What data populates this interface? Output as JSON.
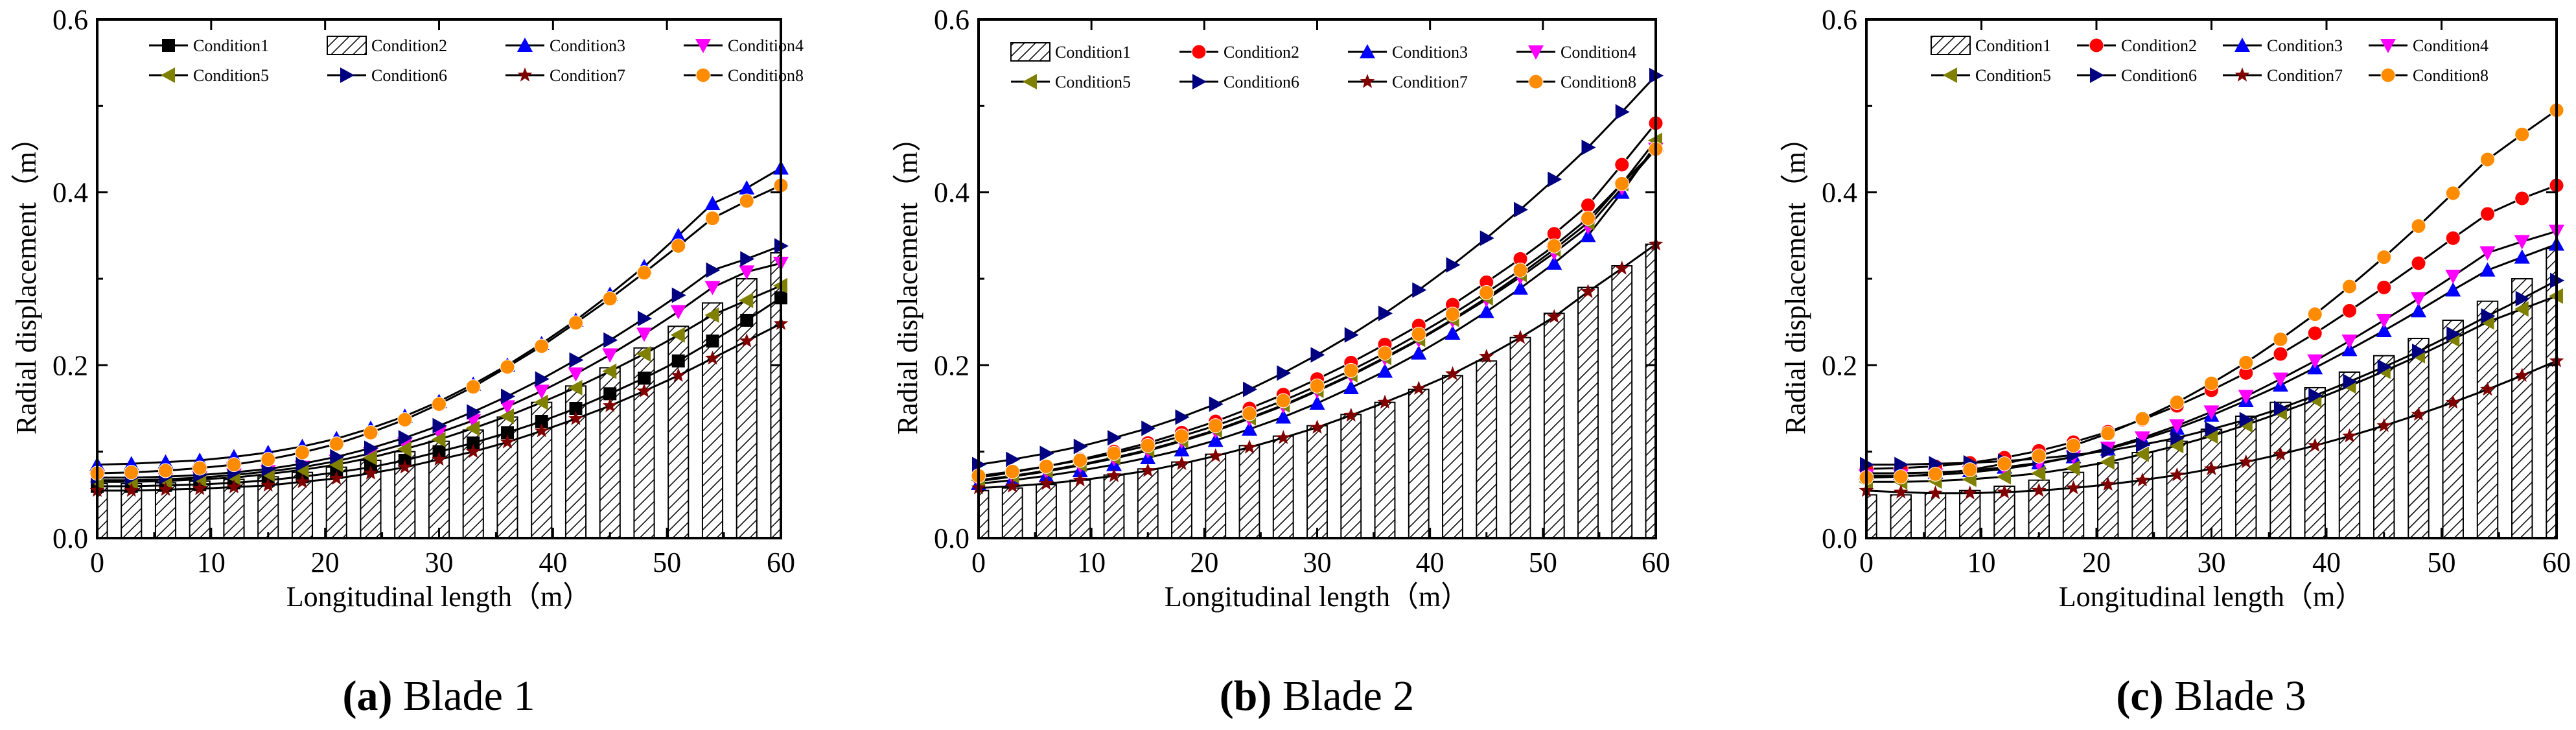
{
  "figure": {
    "colors": {
      "Condition1": "#000000",
      "Condition2": "#ff0000",
      "Condition3": "#0000ff",
      "Condition4": "#ff00ff",
      "Condition5": "#808000",
      "Condition6": "#000080",
      "Condition7": "#800000",
      "Condition8": "#ff8c00"
    }
  },
  "chart_data": [
    {
      "type": "line",
      "caption_label": "(a)",
      "caption_text": " Blade 1",
      "xlabel": "Longitudinal length（m）",
      "ylabel": "Radial displacement（m）",
      "xlim": [
        0,
        60
      ],
      "ylim": [
        0,
        0.6
      ],
      "xticks": [
        "0",
        "10",
        "20",
        "30",
        "40",
        "50",
        "60"
      ],
      "yticks": [
        "0.0",
        "0.2",
        "0.4",
        "0.6"
      ],
      "x": [
        0,
        3,
        6,
        9,
        12,
        15,
        18,
        21,
        24,
        27,
        30,
        33,
        36,
        39,
        42,
        45,
        48,
        51,
        54,
        57,
        60
      ],
      "bar_series": "Condition2",
      "legend": [
        "Condition1",
        "Condition2",
        "Condition3",
        "Condition4",
        "Condition5",
        "Condition6",
        "Condition7",
        "Condition8"
      ],
      "series": [
        {
          "name": "Condition1",
          "marker": "square",
          "values": [
            0.06,
            0.06,
            0.061,
            0.062,
            0.064,
            0.067,
            0.071,
            0.076,
            0.082,
            0.09,
            0.1,
            0.11,
            0.122,
            0.135,
            0.15,
            0.167,
            0.185,
            0.205,
            0.228,
            0.252,
            0.278
          ]
        },
        {
          "name": "Condition2",
          "marker": "bar",
          "values": [
            0.063,
            0.063,
            0.064,
            0.066,
            0.068,
            0.071,
            0.076,
            0.082,
            0.09,
            0.1,
            0.112,
            0.125,
            0.14,
            0.157,
            0.176,
            0.197,
            0.22,
            0.245,
            0.272,
            0.3,
            0.33
          ]
        },
        {
          "name": "Condition3",
          "marker": "triangle-up",
          "values": [
            0.085,
            0.086,
            0.088,
            0.09,
            0.094,
            0.099,
            0.106,
            0.115,
            0.127,
            0.141,
            0.158,
            0.178,
            0.2,
            0.225,
            0.252,
            0.282,
            0.314,
            0.35,
            0.387,
            0.405,
            0.428
          ]
        },
        {
          "name": "Condition4",
          "marker": "triangle-down",
          "values": [
            0.067,
            0.067,
            0.068,
            0.07,
            0.073,
            0.077,
            0.082,
            0.089,
            0.098,
            0.109,
            0.122,
            0.136,
            0.152,
            0.17,
            0.19,
            0.212,
            0.236,
            0.262,
            0.29,
            0.308,
            0.318
          ]
        },
        {
          "name": "Condition5",
          "marker": "triangle-left",
          "values": [
            0.065,
            0.065,
            0.066,
            0.068,
            0.07,
            0.074,
            0.079,
            0.085,
            0.093,
            0.103,
            0.114,
            0.127,
            0.141,
            0.157,
            0.174,
            0.193,
            0.213,
            0.235,
            0.258,
            0.275,
            0.292
          ]
        },
        {
          "name": "Condition6",
          "marker": "triangle-right",
          "values": [
            0.07,
            0.07,
            0.071,
            0.073,
            0.076,
            0.08,
            0.086,
            0.094,
            0.104,
            0.116,
            0.13,
            0.146,
            0.164,
            0.184,
            0.206,
            0.229,
            0.254,
            0.281,
            0.31,
            0.323,
            0.338
          ]
        },
        {
          "name": "Condition7",
          "marker": "star",
          "values": [
            0.055,
            0.055,
            0.056,
            0.057,
            0.059,
            0.061,
            0.065,
            0.069,
            0.075,
            0.082,
            0.091,
            0.1,
            0.111,
            0.124,
            0.138,
            0.153,
            0.17,
            0.188,
            0.208,
            0.228,
            0.248
          ]
        },
        {
          "name": "Condition8",
          "marker": "circle",
          "values": [
            0.075,
            0.076,
            0.078,
            0.081,
            0.085,
            0.091,
            0.099,
            0.109,
            0.122,
            0.137,
            0.155,
            0.175,
            0.198,
            0.222,
            0.249,
            0.277,
            0.307,
            0.338,
            0.37,
            0.39,
            0.408
          ]
        }
      ]
    },
    {
      "type": "line",
      "caption_label": "(b)",
      "caption_text": " Blade 2",
      "xlabel": "Longitudinal length（m）",
      "ylabel": "Radial displacement（m）",
      "xlim": [
        0,
        60
      ],
      "ylim": [
        0,
        0.6
      ],
      "xticks": [
        "0",
        "10",
        "20",
        "30",
        "40",
        "50",
        "60"
      ],
      "yticks": [
        "0.0",
        "0.2",
        "0.4",
        "0.6"
      ],
      "x": [
        0,
        3,
        6,
        9,
        12,
        15,
        18,
        21,
        24,
        27,
        30,
        33,
        36,
        39,
        42,
        45,
        48,
        51,
        54,
        57,
        60
      ],
      "bar_series": "Condition1",
      "legend": [
        "Condition1",
        "Condition2",
        "Condition3",
        "Condition4",
        "Condition5",
        "Condition6",
        "Condition7",
        "Condition8"
      ],
      "series": [
        {
          "name": "Condition1",
          "marker": "bar",
          "values": [
            0.055,
            0.058,
            0.062,
            0.067,
            0.073,
            0.08,
            0.088,
            0.097,
            0.107,
            0.118,
            0.13,
            0.143,
            0.157,
            0.172,
            0.188,
            0.205,
            0.232,
            0.26,
            0.29,
            0.315,
            0.34
          ]
        },
        {
          "name": "Condition2",
          "marker": "circle",
          "values": [
            0.07,
            0.076,
            0.083,
            0.091,
            0.1,
            0.11,
            0.122,
            0.135,
            0.15,
            0.166,
            0.184,
            0.203,
            0.224,
            0.246,
            0.27,
            0.296,
            0.323,
            0.352,
            0.385,
            0.432,
            0.48
          ]
        },
        {
          "name": "Condition3",
          "marker": "triangle-up",
          "values": [
            0.063,
            0.067,
            0.072,
            0.078,
            0.085,
            0.093,
            0.102,
            0.113,
            0.126,
            0.14,
            0.156,
            0.174,
            0.193,
            0.214,
            0.237,
            0.262,
            0.289,
            0.318,
            0.35,
            0.4,
            0.455
          ]
        },
        {
          "name": "Condition4",
          "marker": "triangle-down",
          "values": [
            0.066,
            0.071,
            0.077,
            0.084,
            0.092,
            0.101,
            0.112,
            0.124,
            0.138,
            0.153,
            0.17,
            0.188,
            0.208,
            0.229,
            0.252,
            0.276,
            0.302,
            0.33,
            0.36,
            0.405,
            0.45
          ]
        },
        {
          "name": "Condition5",
          "marker": "triangle-left",
          "values": [
            0.067,
            0.072,
            0.078,
            0.085,
            0.093,
            0.102,
            0.113,
            0.125,
            0.139,
            0.154,
            0.171,
            0.189,
            0.209,
            0.23,
            0.253,
            0.278,
            0.305,
            0.334,
            0.365,
            0.41,
            0.46
          ]
        },
        {
          "name": "Condition6",
          "marker": "triangle-right",
          "values": [
            0.085,
            0.091,
            0.098,
            0.106,
            0.116,
            0.127,
            0.14,
            0.155,
            0.172,
            0.191,
            0.212,
            0.235,
            0.26,
            0.287,
            0.316,
            0.347,
            0.38,
            0.415,
            0.452,
            0.493,
            0.535
          ]
        },
        {
          "name": "Condition7",
          "marker": "star",
          "values": [
            0.058,
            0.06,
            0.063,
            0.067,
            0.072,
            0.078,
            0.086,
            0.095,
            0.105,
            0.116,
            0.128,
            0.142,
            0.157,
            0.173,
            0.19,
            0.21,
            0.232,
            0.256,
            0.285,
            0.312,
            0.34
          ]
        },
        {
          "name": "Condition8",
          "marker": "circle",
          "values": [
            0.072,
            0.077,
            0.083,
            0.09,
            0.098,
            0.107,
            0.118,
            0.13,
            0.144,
            0.159,
            0.176,
            0.194,
            0.214,
            0.236,
            0.259,
            0.284,
            0.31,
            0.338,
            0.37,
            0.41,
            0.45
          ]
        }
      ]
    },
    {
      "type": "line",
      "caption_label": "(c)",
      "caption_text": " Blade 3",
      "xlabel": "Longitudinal length（m）",
      "ylabel": "Radial displacement（m）",
      "xlim": [
        0,
        60
      ],
      "ylim": [
        0,
        0.6
      ],
      "xticks": [
        "0",
        "10",
        "20",
        "30",
        "40",
        "50",
        "60"
      ],
      "yticks": [
        "0.0",
        "0.2",
        "0.4",
        "0.6"
      ],
      "x": [
        0,
        3,
        6,
        9,
        12,
        15,
        18,
        21,
        24,
        27,
        30,
        33,
        36,
        39,
        42,
        45,
        48,
        51,
        54,
        57,
        60
      ],
      "bar_series": "Condition1",
      "legend": [
        "Condition1",
        "Condition2",
        "Condition3",
        "Condition4",
        "Condition5",
        "Condition6",
        "Condition7",
        "Condition8"
      ],
      "series": [
        {
          "name": "Condition1",
          "marker": "bar",
          "values": [
            0.05,
            0.05,
            0.052,
            0.055,
            0.06,
            0.067,
            0.076,
            0.087,
            0.099,
            0.112,
            0.126,
            0.141,
            0.157,
            0.174,
            0.192,
            0.211,
            0.231,
            0.252,
            0.274,
            0.3,
            0.335
          ]
        },
        {
          "name": "Condition2",
          "marker": "circle",
          "values": [
            0.08,
            0.081,
            0.083,
            0.087,
            0.093,
            0.101,
            0.111,
            0.123,
            0.137,
            0.153,
            0.171,
            0.191,
            0.213,
            0.237,
            0.263,
            0.29,
            0.318,
            0.347,
            0.375,
            0.393,
            0.408
          ]
        },
        {
          "name": "Condition3",
          "marker": "triangle-up",
          "values": [
            0.075,
            0.075,
            0.076,
            0.078,
            0.082,
            0.087,
            0.094,
            0.103,
            0.114,
            0.127,
            0.142,
            0.159,
            0.177,
            0.197,
            0.218,
            0.24,
            0.263,
            0.287,
            0.31,
            0.325,
            0.34
          ]
        },
        {
          "name": "Condition4",
          "marker": "triangle-down",
          "values": [
            0.072,
            0.072,
            0.073,
            0.076,
            0.08,
            0.086,
            0.094,
            0.104,
            0.116,
            0.13,
            0.146,
            0.164,
            0.184,
            0.205,
            0.228,
            0.252,
            0.277,
            0.303,
            0.33,
            0.343,
            0.355
          ]
        },
        {
          "name": "Condition5",
          "marker": "triangle-left",
          "values": [
            0.065,
            0.065,
            0.066,
            0.068,
            0.071,
            0.075,
            0.081,
            0.088,
            0.097,
            0.107,
            0.118,
            0.131,
            0.145,
            0.16,
            0.176,
            0.193,
            0.211,
            0.23,
            0.25,
            0.265,
            0.28
          ]
        },
        {
          "name": "Condition6",
          "marker": "triangle-right",
          "values": [
            0.085,
            0.085,
            0.086,
            0.087,
            0.089,
            0.092,
            0.096,
            0.101,
            0.108,
            0.116,
            0.126,
            0.137,
            0.15,
            0.165,
            0.181,
            0.198,
            0.216,
            0.236,
            0.257,
            0.277,
            0.298
          ]
        },
        {
          "name": "Condition7",
          "marker": "star",
          "values": [
            0.055,
            0.053,
            0.052,
            0.052,
            0.053,
            0.055,
            0.058,
            0.062,
            0.067,
            0.073,
            0.08,
            0.088,
            0.097,
            0.107,
            0.118,
            0.13,
            0.143,
            0.157,
            0.172,
            0.188,
            0.205
          ]
        },
        {
          "name": "Condition8",
          "marker": "circle",
          "values": [
            0.07,
            0.071,
            0.074,
            0.079,
            0.086,
            0.095,
            0.107,
            0.121,
            0.138,
            0.157,
            0.179,
            0.203,
            0.23,
            0.259,
            0.291,
            0.325,
            0.361,
            0.399,
            0.438,
            0.467,
            0.495
          ]
        }
      ]
    }
  ]
}
